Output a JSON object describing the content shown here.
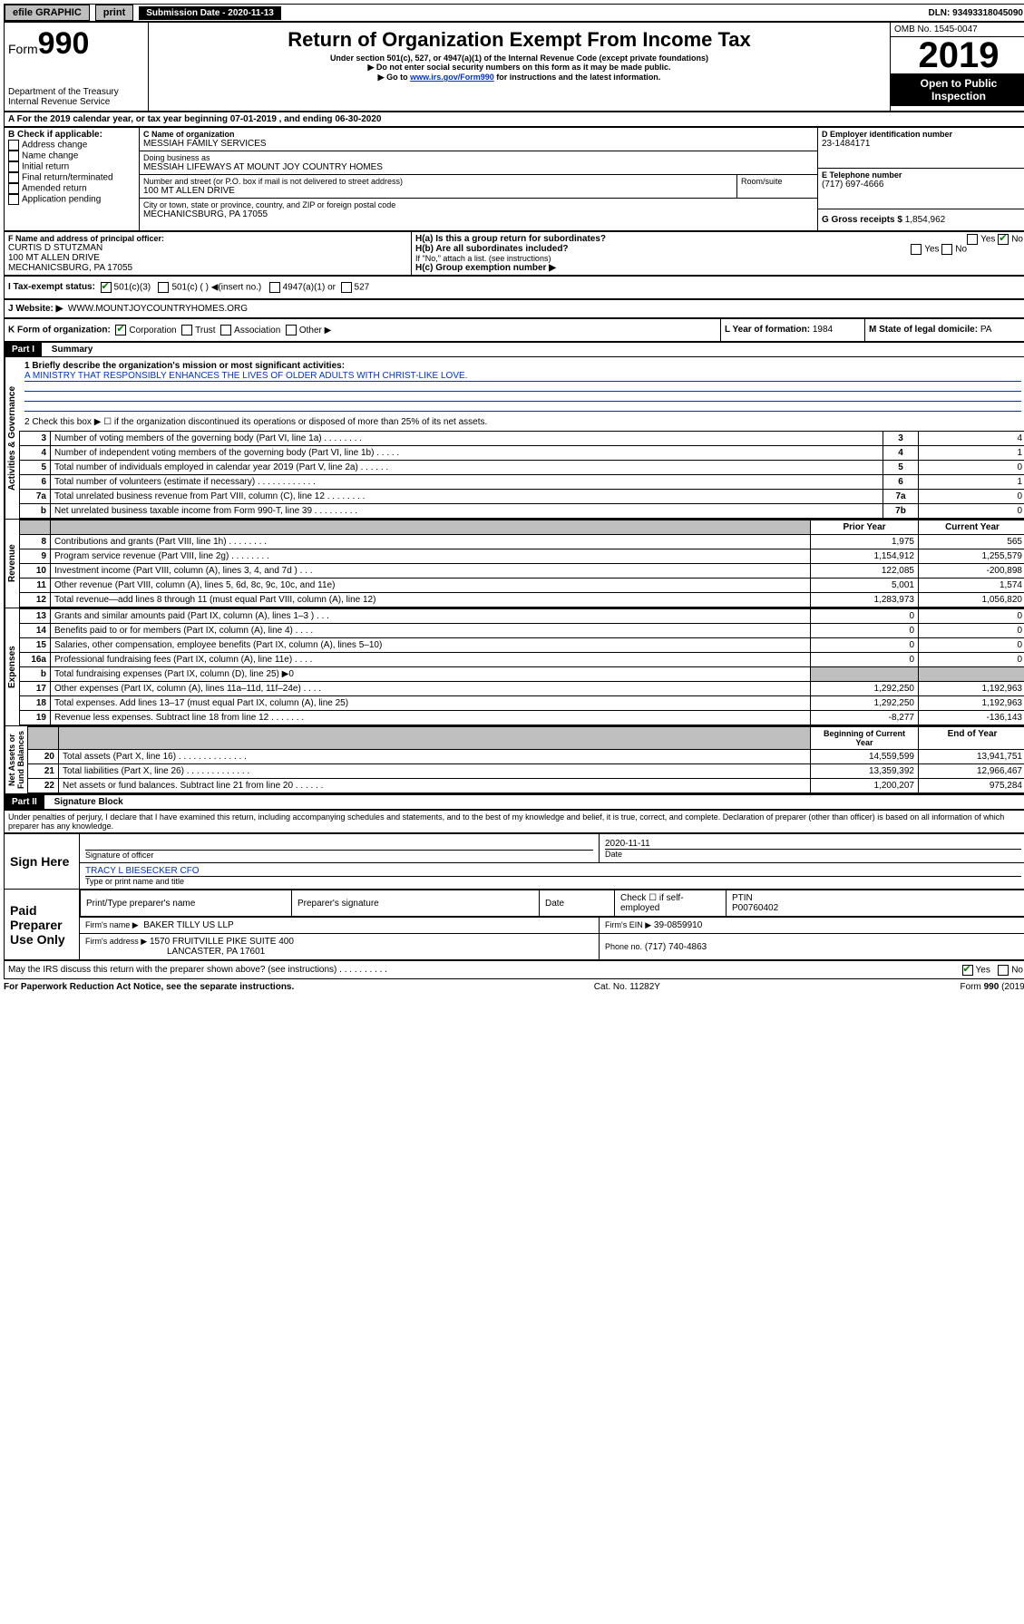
{
  "topbar": {
    "efile": "efile GRAPHIC",
    "print": "print",
    "subdate_label": "Submission Date - 2020-11-13",
    "dln": "DLN: 93493318045090"
  },
  "header": {
    "form_label": "Form",
    "form_number": "990",
    "dept": "Department of the Treasury",
    "irs": "Internal Revenue Service",
    "title": "Return of Organization Exempt From Income Tax",
    "subtitle1": "Under section 501(c), 527, or 4947(a)(1) of the Internal Revenue Code (except private foundations)",
    "subtitle2": "▶ Do not enter social security numbers on this form as it may be made public.",
    "subtitle3_pre": "▶ Go to ",
    "subtitle3_link": "www.irs.gov/Form990",
    "subtitle3_post": " for instructions and the latest information.",
    "omb": "OMB No. 1545-0047",
    "year": "2019",
    "open": "Open to Public Inspection"
  },
  "period": {
    "text": "A For the 2019 calendar year, or tax year beginning 07-01-2019    , and ending 06-30-2020"
  },
  "boxB": {
    "label": "B Check if applicable:",
    "items": [
      "Address change",
      "Name change",
      "Initial return",
      "Final return/terminated",
      "Amended return",
      "Application pending"
    ]
  },
  "boxC": {
    "label": "C Name of organization",
    "name": "MESSIAH FAMILY SERVICES",
    "dba_label": "Doing business as",
    "dba": "MESSIAH LIFEWAYS AT MOUNT JOY COUNTRY HOMES",
    "street_label": "Number and street (or P.O. box if mail is not delivered to street address)",
    "street": "100 MT ALLEN DRIVE",
    "room_label": "Room/suite",
    "city_label": "City or town, state or province, country, and ZIP or foreign postal code",
    "city": "MECHANICSBURG, PA  17055"
  },
  "boxD": {
    "label": "D Employer identification number",
    "value": "23-1484171"
  },
  "boxE": {
    "label": "E Telephone number",
    "value": "(717) 697-4666"
  },
  "boxG": {
    "label": "G Gross receipts $",
    "value": "1,854,962"
  },
  "boxF": {
    "label": "F  Name and address of principal officer:",
    "name": "CURTIS D STUTZMAN",
    "addr1": "100 MT ALLEN DRIVE",
    "addr2": "MECHANICSBURG, PA  17055"
  },
  "boxH": {
    "a": "H(a)  Is this a group return for subordinates?",
    "b": "H(b)  Are all subordinates included?",
    "b_note": "If \"No,\" attach a list. (see instructions)",
    "c": "H(c)  Group exemption number ▶",
    "yes": "Yes",
    "no": "No"
  },
  "boxI": {
    "label": "I   Tax-exempt status:",
    "opt1": "501(c)(3)",
    "opt2": "501(c) (  ) ◀(insert no.)",
    "opt3": "4947(a)(1) or",
    "opt4": "527"
  },
  "boxJ": {
    "label": "J   Website: ▶",
    "value": "WWW.MOUNTJOYCOUNTRYHOMES.ORG"
  },
  "boxK": {
    "label": "K Form of organization:",
    "opts": [
      "Corporation",
      "Trust",
      "Association",
      "Other ▶"
    ]
  },
  "boxL": {
    "label": "L Year of formation:",
    "value": "1984"
  },
  "boxM": {
    "label": "M State of legal domicile:",
    "value": "PA"
  },
  "part1": {
    "label": "Part I",
    "title": "Summary",
    "line1_label": "1  Briefly describe the organization's mission or most significant activities:",
    "line1_text": "A MINISTRY THAT RESPONSIBLY ENHANCES THE LIVES OF OLDER ADULTS WITH CHRIST-LIKE LOVE.",
    "line2": "2   Check this box ▶ ☐  if the organization discontinued its operations or disposed of more than 25% of its net assets.",
    "prior_year": "Prior Year",
    "current_year": "Current Year",
    "begin_year": "Beginning of Current Year",
    "end_year": "End of Year",
    "governance": [
      {
        "n": "3",
        "t": "Number of voting members of the governing body (Part VI, line 1a)   .    .    .    .    .    .    .    .",
        "k": "3",
        "v": "4"
      },
      {
        "n": "4",
        "t": "Number of independent voting members of the governing body (Part VI, line 1b)   .    .    .    .    .",
        "k": "4",
        "v": "1"
      },
      {
        "n": "5",
        "t": "Total number of individuals employed in calendar year 2019 (Part V, line 2a)   .    .    .    .    .    .",
        "k": "5",
        "v": "0"
      },
      {
        "n": "6",
        "t": "Total number of volunteers (estimate if necessary)   .    .    .    .    .    .    .    .    .    .    .    .",
        "k": "6",
        "v": "1"
      },
      {
        "n": "7a",
        "t": "Total unrelated business revenue from Part VIII, column (C), line 12   .    .    .    .    .    .    .    .",
        "k": "7a",
        "v": "0"
      },
      {
        "n": "b",
        "t": "Net unrelated business taxable income from Form 990-T, line 39   .    .    .    .    .    .    .    .    .",
        "k": "7b",
        "v": "0"
      }
    ],
    "revenue": [
      {
        "n": "8",
        "t": "Contributions and grants (Part VIII, line 1h)   .    .    .    .    .    .    .    .",
        "p": "1,975",
        "c": "565"
      },
      {
        "n": "9",
        "t": "Program service revenue (Part VIII, line 2g)   .    .    .    .    .    .    .    .",
        "p": "1,154,912",
        "c": "1,255,579"
      },
      {
        "n": "10",
        "t": "Investment income (Part VIII, column (A), lines 3, 4, and 7d )   .    .    .",
        "p": "122,085",
        "c": "-200,898"
      },
      {
        "n": "11",
        "t": "Other revenue (Part VIII, column (A), lines 5, 6d, 8c, 9c, 10c, and 11e)",
        "p": "5,001",
        "c": "1,574"
      },
      {
        "n": "12",
        "t": "Total revenue—add lines 8 through 11 (must equal Part VIII, column (A), line 12)",
        "p": "1,283,973",
        "c": "1,056,820"
      }
    ],
    "expenses": [
      {
        "n": "13",
        "t": "Grants and similar amounts paid (Part IX, column (A), lines 1–3 )   .    .    .",
        "p": "0",
        "c": "0"
      },
      {
        "n": "14",
        "t": "Benefits paid to or for members (Part IX, column (A), line 4)   .    .    .    .",
        "p": "0",
        "c": "0"
      },
      {
        "n": "15",
        "t": "Salaries, other compensation, employee benefits (Part IX, column (A), lines 5–10)",
        "p": "0",
        "c": "0"
      },
      {
        "n": "16a",
        "t": "Professional fundraising fees (Part IX, column (A), line 11e)   .    .    .    .",
        "p": "0",
        "c": "0"
      },
      {
        "n": "b",
        "t": "Total fundraising expenses (Part IX, column (D), line 25) ▶0",
        "p": "",
        "c": "",
        "shaded": true
      },
      {
        "n": "17",
        "t": "Other expenses (Part IX, column (A), lines 11a–11d, 11f–24e)   .    .    .    .",
        "p": "1,292,250",
        "c": "1,192,963"
      },
      {
        "n": "18",
        "t": "Total expenses. Add lines 13–17 (must equal Part IX, column (A), line 25)",
        "p": "1,292,250",
        "c": "1,192,963"
      },
      {
        "n": "19",
        "t": "Revenue less expenses. Subtract line 18 from line 12   .    .    .    .    .    .    .",
        "p": "-8,277",
        "c": "-136,143"
      }
    ],
    "netassets": [
      {
        "n": "20",
        "t": "Total assets (Part X, line 16)   .    .    .    .    .    .    .    .    .    .    .    .    .    .",
        "p": "14,559,599",
        "c": "13,941,751"
      },
      {
        "n": "21",
        "t": "Total liabilities (Part X, line 26)   .    .    .    .    .    .    .    .    .    .    .    .    .",
        "p": "13,359,392",
        "c": "12,966,467"
      },
      {
        "n": "22",
        "t": "Net assets or fund balances. Subtract line 21 from line 20   .    .    .    .    .    .",
        "p": "1,200,207",
        "c": "975,284"
      }
    ]
  },
  "part2": {
    "label": "Part II",
    "title": "Signature Block",
    "declaration": "Under penalties of perjury, I declare that I have examined this return, including accompanying schedules and statements, and to the best of my knowledge and belief, it is true, correct, and complete. Declaration of preparer (other than officer) is based on all information of which preparer has any knowledge.",
    "sign_here": "Sign Here",
    "sig_officer": "Signature of officer",
    "sig_date": "2020-11-11",
    "date_label": "Date",
    "officer_name": "TRACY L BIESECKER  CFO",
    "officer_type": "Type or print name and title",
    "paid": "Paid Preparer Use Only",
    "prep_name_label": "Print/Type preparer's name",
    "prep_sig_label": "Preparer's signature",
    "prep_date_label": "Date",
    "check_self": "Check ☐ if self-employed",
    "ptin_label": "PTIN",
    "ptin": "P00760402",
    "firm_name_label": "Firm's name    ▶",
    "firm_name": "BAKER TILLY US LLP",
    "firm_ein_label": "Firm's EIN ▶",
    "firm_ein": "39-0859910",
    "firm_addr_label": "Firm's address ▶",
    "firm_addr1": "1570 FRUITVILLE PIKE SUITE 400",
    "firm_addr2": "LANCASTER, PA  17601",
    "phone_label": "Phone no.",
    "phone": "(717) 740-4863",
    "discuss": "May the IRS discuss this return with the preparer shown above? (see instructions)    .    .    .    .    .    .    .    .    .    .",
    "yes": "Yes",
    "no": "No"
  },
  "footer": {
    "left": "For Paperwork Reduction Act Notice, see the separate instructions.",
    "mid": "Cat. No. 11282Y",
    "right": "Form 990 (2019)"
  }
}
